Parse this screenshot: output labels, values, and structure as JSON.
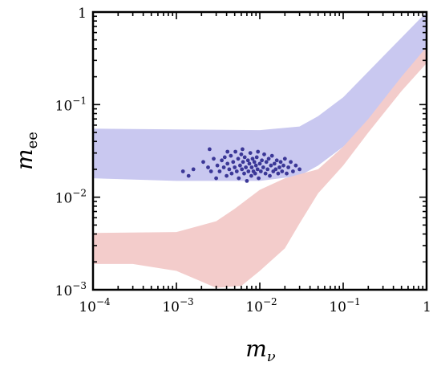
{
  "chart_data": {
    "type": "scatter",
    "xscale": "log",
    "yscale": "log",
    "xlim": [
      0.0001,
      1
    ],
    "ylim": [
      0.001,
      1
    ],
    "grid": false,
    "legend": "none",
    "xlabel": {
      "base": "m",
      "sub": "ν"
    },
    "ylabel": {
      "base": "m",
      "sub": "ee"
    },
    "xticks": [
      {
        "value": 0.0001,
        "mantissa": "10",
        "exp": "−4"
      },
      {
        "value": 0.001,
        "mantissa": "10",
        "exp": "−3"
      },
      {
        "value": 0.01,
        "mantissa": "10",
        "exp": "−2"
      },
      {
        "value": 0.1,
        "mantissa": "10",
        "exp": "−1"
      },
      {
        "value": 1,
        "mantissa": "1",
        "exp": ""
      }
    ],
    "yticks": [
      {
        "value": 0.001,
        "mantissa": "10",
        "exp": "−3"
      },
      {
        "value": 0.01,
        "mantissa": "10",
        "exp": "−2"
      },
      {
        "value": 0.1,
        "mantissa": "10",
        "exp": "−1"
      },
      {
        "value": 1,
        "mantissa": "1",
        "exp": ""
      }
    ],
    "regions": [
      {
        "id": "inverted-band",
        "color": "#c9c8f0",
        "polygon": [
          [
            0.0001,
            0.055
          ],
          [
            0.001,
            0.054
          ],
          [
            0.01,
            0.053
          ],
          [
            0.03,
            0.058
          ],
          [
            0.05,
            0.075
          ],
          [
            0.1,
            0.12
          ],
          [
            0.3,
            0.33
          ],
          [
            1,
            1.0
          ],
          [
            1,
            0.3
          ],
          [
            0.5,
            0.16
          ],
          [
            0.2,
            0.065
          ],
          [
            0.1,
            0.035
          ],
          [
            0.05,
            0.022
          ],
          [
            0.03,
            0.017
          ],
          [
            0.01,
            0.015
          ],
          [
            0.001,
            0.015
          ],
          [
            0.0001,
            0.016
          ]
        ]
      },
      {
        "id": "normal-band",
        "color": "#f3cccb",
        "polygon": [
          [
            0.0001,
            0.0041
          ],
          [
            0.001,
            0.0042
          ],
          [
            0.003,
            0.0055
          ],
          [
            0.005,
            0.0075
          ],
          [
            0.01,
            0.012
          ],
          [
            0.02,
            0.016
          ],
          [
            0.05,
            0.02
          ],
          [
            0.1,
            0.035
          ],
          [
            0.2,
            0.07
          ],
          [
            0.5,
            0.2
          ],
          [
            1,
            0.42
          ],
          [
            1,
            0.28
          ],
          [
            0.5,
            0.14
          ],
          [
            0.2,
            0.05
          ],
          [
            0.1,
            0.022
          ],
          [
            0.05,
            0.011
          ],
          [
            0.03,
            0.0052
          ],
          [
            0.02,
            0.0028
          ],
          [
            0.01,
            0.0016
          ],
          [
            0.006,
            0.0011
          ],
          [
            0.003,
            0.00105
          ],
          [
            0.001,
            0.0016
          ],
          [
            0.0003,
            0.0019
          ],
          [
            0.0001,
            0.0019
          ]
        ]
      }
    ],
    "highlight_points": {
      "color": "#3b3797",
      "points": [
        [
          0.0021,
          0.024
        ],
        [
          0.0024,
          0.021
        ],
        [
          0.0026,
          0.019
        ],
        [
          0.0028,
          0.026
        ],
        [
          0.003,
          0.016
        ],
        [
          0.0031,
          0.022
        ],
        [
          0.0033,
          0.019
        ],
        [
          0.0035,
          0.025
        ],
        [
          0.0037,
          0.021
        ],
        [
          0.0038,
          0.027
        ],
        [
          0.004,
          0.017
        ],
        [
          0.0041,
          0.023
        ],
        [
          0.0043,
          0.02
        ],
        [
          0.0045,
          0.028
        ],
        [
          0.0046,
          0.018
        ],
        [
          0.0048,
          0.024
        ],
        [
          0.005,
          0.021
        ],
        [
          0.0051,
          0.031
        ],
        [
          0.0053,
          0.019
        ],
        [
          0.0055,
          0.026
        ],
        [
          0.0056,
          0.016
        ],
        [
          0.0058,
          0.022
        ],
        [
          0.006,
          0.029
        ],
        [
          0.0061,
          0.02
        ],
        [
          0.0063,
          0.024
        ],
        [
          0.0065,
          0.018
        ],
        [
          0.0066,
          0.027
        ],
        [
          0.0068,
          0.021
        ],
        [
          0.007,
          0.015
        ],
        [
          0.0072,
          0.025
        ],
        [
          0.0073,
          0.019
        ],
        [
          0.0075,
          0.023
        ],
        [
          0.0077,
          0.03
        ],
        [
          0.0079,
          0.017
        ],
        [
          0.008,
          0.021
        ],
        [
          0.0082,
          0.026
        ],
        [
          0.0084,
          0.019
        ],
        [
          0.0086,
          0.024
        ],
        [
          0.0088,
          0.018
        ],
        [
          0.009,
          0.022
        ],
        [
          0.0092,
          0.027
        ],
        [
          0.0094,
          0.02
        ],
        [
          0.0097,
          0.016
        ],
        [
          0.01,
          0.023
        ],
        [
          0.0103,
          0.019
        ],
        [
          0.0106,
          0.025
        ],
        [
          0.011,
          0.021
        ],
        [
          0.0113,
          0.029
        ],
        [
          0.0117,
          0.018
        ],
        [
          0.012,
          0.024
        ],
        [
          0.0124,
          0.02
        ],
        [
          0.0128,
          0.026
        ],
        [
          0.0132,
          0.017
        ],
        [
          0.0136,
          0.022
        ],
        [
          0.014,
          0.028
        ],
        [
          0.0145,
          0.019
        ],
        [
          0.015,
          0.023
        ],
        [
          0.0155,
          0.02
        ],
        [
          0.016,
          0.025
        ],
        [
          0.0166,
          0.018
        ],
        [
          0.0172,
          0.021
        ],
        [
          0.0178,
          0.024
        ],
        [
          0.0185,
          0.019
        ],
        [
          0.0192,
          0.022
        ],
        [
          0.02,
          0.026
        ],
        [
          0.021,
          0.018
        ],
        [
          0.022,
          0.021
        ],
        [
          0.0235,
          0.024
        ],
        [
          0.025,
          0.019
        ],
        [
          0.027,
          0.022
        ],
        [
          0.03,
          0.02
        ],
        [
          0.0014,
          0.017
        ],
        [
          0.0016,
          0.02
        ],
        [
          0.0012,
          0.019
        ],
        [
          0.0025,
          0.033
        ],
        [
          0.0062,
          0.033
        ],
        [
          0.0041,
          0.031
        ],
        [
          0.0095,
          0.031
        ]
      ]
    }
  }
}
